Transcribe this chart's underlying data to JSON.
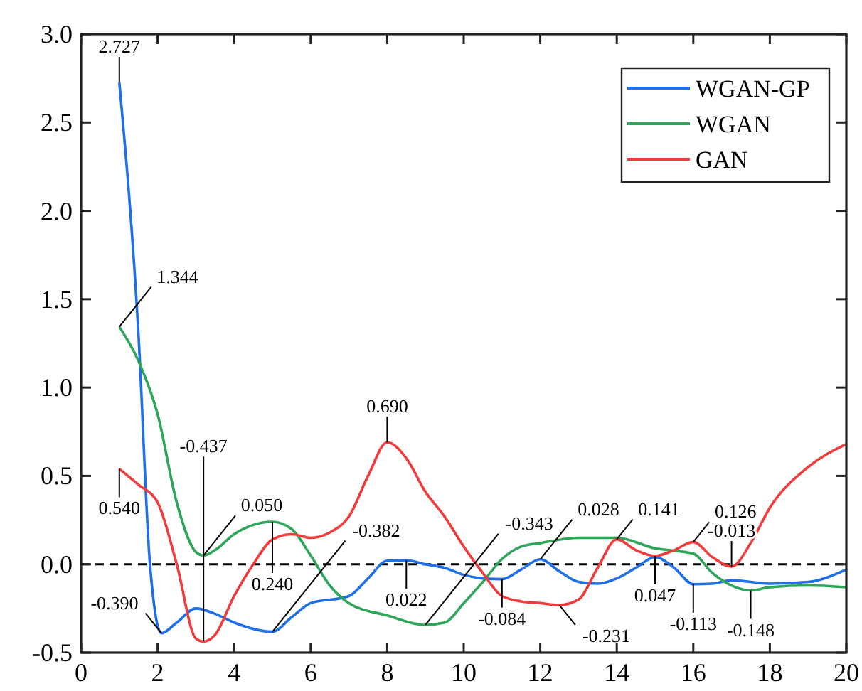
{
  "chart_data": {
    "type": "line",
    "xlim": [
      0,
      20
    ],
    "xticks": [
      0,
      2,
      4,
      6,
      8,
      10,
      12,
      14,
      16,
      18,
      20
    ],
    "ylim": [
      -0.5,
      3.0
    ],
    "yticks": [
      {
        "value": -0.5,
        "label": "-0.5"
      },
      {
        "value": 0,
        "label": "0.0"
      },
      {
        "value": 0.5,
        "label": "0.5"
      },
      {
        "value": 1,
        "label": "1.0"
      },
      {
        "value": 1.5,
        "label": "1.5"
      },
      {
        "value": 2,
        "label": "2.0"
      },
      {
        "value": 2.5,
        "label": "2.5"
      },
      {
        "value": 3,
        "label": "3.0"
      }
    ],
    "grid": false,
    "legend": "top right",
    "marker": "none",
    "series": [
      {
        "name": "WGAN-GP",
        "color": "#1f6fe8",
        "x": [
          1,
          1.5,
          1.8,
          2.1,
          2.5,
          3,
          3.5,
          4,
          5,
          5.5,
          6,
          7,
          7.5,
          8,
          8.5,
          9,
          9.5,
          10,
          10.5,
          11,
          11.5,
          12,
          12.5,
          13,
          13.5,
          14,
          14.5,
          15,
          15.5,
          16,
          16.5,
          17,
          18,
          19,
          20
        ],
        "values": [
          2.727,
          1.3,
          0.0,
          -0.39,
          -0.33,
          -0.25,
          -0.28,
          -0.33,
          -0.382,
          -0.3,
          -0.22,
          -0.18,
          -0.08,
          0.02,
          0.022,
          0.0,
          -0.02,
          -0.06,
          -0.08,
          -0.084,
          -0.03,
          0.028,
          -0.04,
          -0.1,
          -0.11,
          -0.08,
          -0.02,
          0.04,
          -0.02,
          -0.113,
          -0.11,
          -0.09,
          -0.11,
          -0.1,
          -0.03
        ]
      },
      {
        "name": "WGAN",
        "color": "#2ea65a",
        "x": [
          1,
          1.5,
          2,
          2.5,
          3,
          3.2,
          3.5,
          4,
          5,
          5.5,
          6,
          6.5,
          7,
          8,
          9,
          9.5,
          10,
          10.5,
          11,
          11.5,
          12,
          13,
          14,
          15,
          16,
          16.5,
          17,
          17.5,
          18,
          19,
          20
        ],
        "values": [
          1.344,
          1.15,
          0.85,
          0.35,
          0.07,
          0.05,
          0.08,
          0.17,
          0.24,
          0.2,
          0.05,
          -0.12,
          -0.22,
          -0.29,
          -0.343,
          -0.33,
          -0.22,
          -0.1,
          0.03,
          0.1,
          0.12,
          0.15,
          0.15,
          0.09,
          0.06,
          -0.05,
          -0.12,
          -0.148,
          -0.13,
          -0.12,
          -0.13
        ]
      },
      {
        "name": "GAN",
        "color": "#f03c3c",
        "x": [
          1,
          1.5,
          2,
          2.5,
          3,
          3.2,
          3.5,
          4,
          4.5,
          5,
          5.5,
          6,
          6.5,
          7,
          7.5,
          8,
          8.5,
          9,
          9.5,
          10,
          10.5,
          11,
          11.5,
          12,
          12.5,
          13,
          13.5,
          14,
          14.5,
          15,
          15.5,
          16,
          16.5,
          17,
          17.5,
          18,
          19,
          20
        ],
        "values": [
          0.54,
          0.45,
          0.35,
          0.0,
          -0.42,
          -0.437,
          -0.4,
          -0.18,
          0.0,
          0.14,
          0.17,
          0.15,
          0.18,
          0.27,
          0.5,
          0.69,
          0.6,
          0.41,
          0.27,
          0.1,
          -0.05,
          -0.18,
          -0.21,
          -0.22,
          -0.231,
          -0.2,
          -0.02,
          0.141,
          0.08,
          0.047,
          0.08,
          0.126,
          0.04,
          -0.013,
          0.12,
          0.32,
          0.55,
          0.68
        ]
      }
    ],
    "ref_lines": [
      {
        "axis": "y",
        "value": 0,
        "color": "#000000",
        "line_style": "dashed"
      }
    ],
    "annotations": [
      {
        "text": "2.727",
        "x": 1,
        "y": 2.727
      },
      {
        "text": "1.344",
        "x": 1,
        "y": 1.344
      },
      {
        "text": "0.540",
        "x": 1,
        "y": 0.54
      },
      {
        "text": "-0.390",
        "x": 2.1,
        "y": -0.39
      },
      {
        "text": "-0.437",
        "x": 3.2,
        "y": -0.437
      },
      {
        "text": "0.050",
        "x": 3.2,
        "y": 0.05
      },
      {
        "text": "0.240",
        "x": 5,
        "y": 0.24
      },
      {
        "text": "-0.382",
        "x": 5,
        "y": -0.382
      },
      {
        "text": "0.690",
        "x": 8,
        "y": 0.69
      },
      {
        "text": "0.022",
        "x": 8.5,
        "y": 0.022
      },
      {
        "text": "-0.343",
        "x": 9,
        "y": -0.343
      },
      {
        "text": "-0.084",
        "x": 11,
        "y": -0.084
      },
      {
        "text": "0.028",
        "x": 12,
        "y": 0.028
      },
      {
        "text": "-0.231",
        "x": 12.5,
        "y": -0.231
      },
      {
        "text": "0.141",
        "x": 14,
        "y": 0.141
      },
      {
        "text": "0.047",
        "x": 15,
        "y": 0.047
      },
      {
        "text": "0.126",
        "x": 16,
        "y": 0.126
      },
      {
        "text": "-0.113",
        "x": 16,
        "y": -0.113
      },
      {
        "text": "-0.148",
        "x": 17.5,
        "y": -0.148
      },
      {
        "text": "-0.013",
        "x": 17,
        "y": -0.013
      }
    ]
  }
}
